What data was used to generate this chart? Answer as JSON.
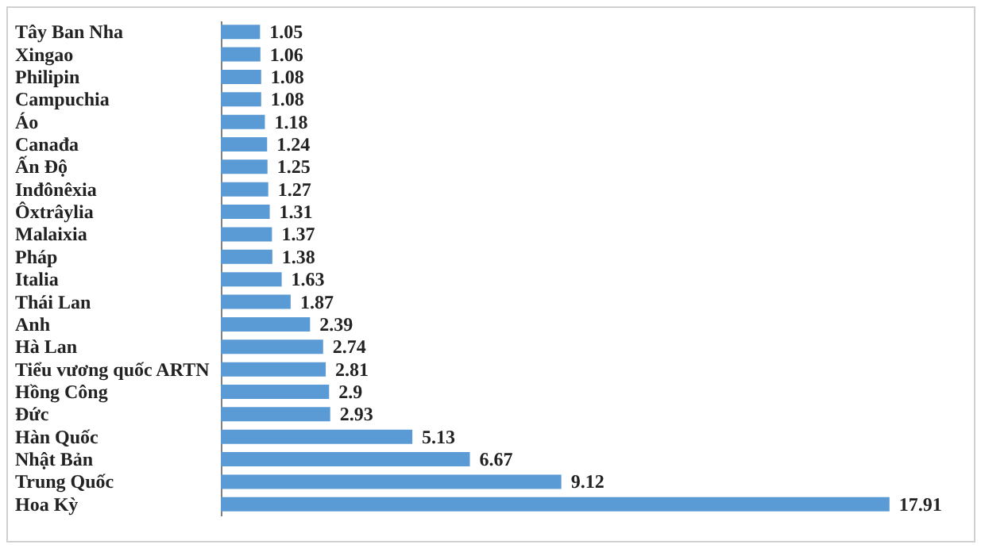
{
  "chart_data": {
    "type": "bar",
    "orientation": "horizontal",
    "categories": [
      "Tây Ban Nha",
      "Xingao",
      "Philipin",
      "Campuchia",
      "Áo",
      "Canađa",
      "Ấn Độ",
      "Inđônêxia",
      "Ôxtrâylia",
      "Malaixia",
      "Pháp",
      "Italia",
      "Thái Lan",
      "Anh",
      "Hà Lan",
      "Tiểu vương quốc ARTN",
      "Hồng Công",
      "Đức",
      "Hàn Quốc",
      "Nhật Bản",
      "Trung Quốc",
      "Hoa Kỳ"
    ],
    "values": [
      1.05,
      1.06,
      1.08,
      1.08,
      1.18,
      1.24,
      1.25,
      1.27,
      1.31,
      1.37,
      1.38,
      1.63,
      1.87,
      2.39,
      2.74,
      2.81,
      2.9,
      2.93,
      5.13,
      6.67,
      9.12,
      17.91
    ],
    "color": "#5b9bd5",
    "xlim": [
      0,
      20
    ],
    "data_labels": true
  }
}
